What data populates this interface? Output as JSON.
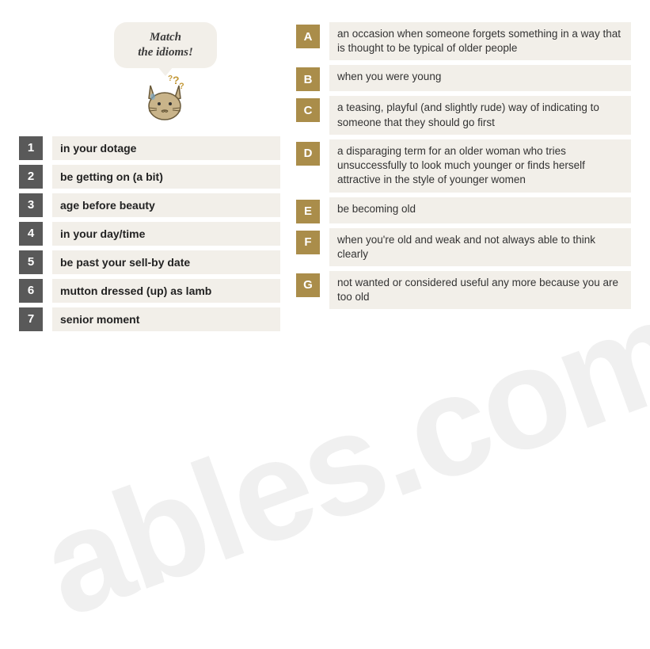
{
  "bubble": {
    "line1": "Match",
    "line2": "the idioms!"
  },
  "idioms": [
    {
      "num": "1",
      "text": "in your dotage"
    },
    {
      "num": "2",
      "text": "be getting on (a bit)"
    },
    {
      "num": "3",
      "text": "age before beauty"
    },
    {
      "num": "4",
      "text": "in your day/time"
    },
    {
      "num": "5",
      "text": "be past your sell-by date"
    },
    {
      "num": "6",
      "text": "mutton dressed (up) as lamb"
    },
    {
      "num": "7",
      "text": "senior moment"
    }
  ],
  "defs": [
    {
      "letter": "A",
      "text": "an occasion when someone forgets something in a way that is thought to be typical of older people"
    },
    {
      "letter": "B",
      "text": "when you were young"
    },
    {
      "letter": "C",
      "text": "a teasing, playful (and slightly rude) way of indicating to someone that they should go first"
    },
    {
      "letter": "D",
      "text": "a disparaging term for an older woman who tries unsuccessfully to look much younger or finds herself attractive in the style of younger women"
    },
    {
      "letter": "E",
      "text": "be becoming old"
    },
    {
      "letter": "F",
      "text": "when you're old and weak and not always able to think clearly"
    },
    {
      "letter": "G",
      "text": "not wanted or considered useful any more because you are too old"
    }
  ],
  "watermark": "ables.com",
  "colors": {
    "num_bg": "#595959",
    "letter_bg": "#aa8d4a",
    "row_bg": "#f2efe9",
    "text": "#333333"
  }
}
